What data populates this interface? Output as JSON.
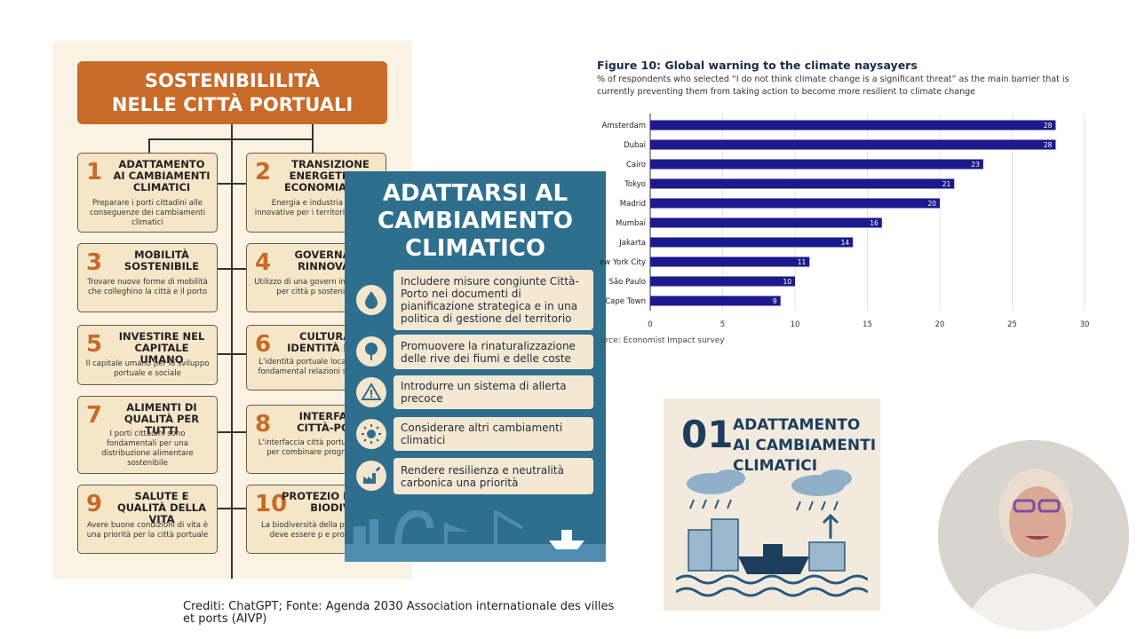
{
  "left": {
    "title_line1": "SOSTENIBILILITÀ",
    "title_line2": "NELLE CITTÀ PORTUALI",
    "cards": [
      {
        "num": "1",
        "title": "ADATTAMENTO AI CAMBIAMENTI CLIMATICI",
        "desc": "Preparare i porti cittadini alle conseguenze dei cambiamenti climatici"
      },
      {
        "num": "2",
        "title": "TRANSIZIONE ENERGETICA E ECONOMIA CIRC",
        "desc": "Energia e industria sost innovative per i territori cittadini"
      },
      {
        "num": "3",
        "title": "MOBILITÀ SOSTENIBILE",
        "desc": "Trovare nuove forme di mobilità che colleghino la città e il porto"
      },
      {
        "num": "4",
        "title": "GOVERNANC RINNOVATA",
        "desc": "Utilizzo di una govern innovativa per città p sostenibili"
      },
      {
        "num": "5",
        "title": "INVESTIRE NEL CAPITALE UMANO",
        "desc": "Il capitale umano per lo sviluppo portuale e sociale"
      },
      {
        "num": "6",
        "title": "CULTURA E IDENTITÀ PORT",
        "desc": "L'identità portuale loca risorsa fondamental relazioni sostenib"
      },
      {
        "num": "7",
        "title": "ALIMENTI DI QUALITÀ PER TUTTI",
        "desc": "I porti cittadini sono fondamentali per una distribuzione alimentare sostenibile"
      },
      {
        "num": "8",
        "title": "INTERFACC CITTÀ-PORT",
        "desc": "L'interfaccia città portu risorsa per combinare programmi"
      },
      {
        "num": "9",
        "title": "SALUTE E QUALITÀ DELLA VITA",
        "desc": "Avere buone condizioni di vita è una priorità per la città portuale"
      },
      {
        "num": "10",
        "title": "PROTEZIO DELLA BIODIV",
        "desc": "La biodiversità della portuale deve essere p e protetta"
      }
    ]
  },
  "mid": {
    "title_line1": "ADATTARSI AL",
    "title_line2": "CAMBIAMENTO",
    "title_line3": "CLIMATICO",
    "items": [
      {
        "icon": "water-drop-icon",
        "text": "Includere misure congiunte Città-Porto nei documenti di pianificazione strategica e in una politica di gestione del territorio"
      },
      {
        "icon": "tree-icon",
        "text": "Promuovere la rinaturalizzazione delle rive dei fiumi e delle coste"
      },
      {
        "icon": "warning-icon",
        "text": "Introdurre un sistema di allerta precoce"
      },
      {
        "icon": "sun-icon",
        "text": "Considerare altri cambiamenti climatici"
      },
      {
        "icon": "factory-leaf-icon",
        "text": "Rendere resilienza e neutralità carbonica una priorità"
      }
    ]
  },
  "chart": {
    "title": "Figure 10: Global warning to the climate naysayers",
    "subtitle": "% of respondents who selected “I do not think climate change is a significant threat” as the main barrier that is currently preventing them from taking action to become more resilient to climate change",
    "source": "urce: Economist Impact survey"
  },
  "chart_data": {
    "type": "bar",
    "orientation": "horizontal",
    "categories": [
      "Amsterdam",
      "Dubai",
      "Cairo",
      "Tokyo",
      "Madrid",
      "Mumbai",
      "Jakarta",
      "ew York City",
      "São Paulo",
      "Cape Town"
    ],
    "values": [
      28,
      28,
      23,
      21,
      20,
      16,
      14,
      11,
      10,
      9
    ],
    "xlim": [
      0,
      30
    ],
    "xticks": [
      "0",
      "5",
      "10",
      "15",
      "20",
      "25",
      "30"
    ],
    "bar_color": "#1a1a8c",
    "grid": true
  },
  "adapt": {
    "num": "01",
    "title_line1": "ADATTAMENTO",
    "title_line2": "AI CAMBIAMENTI",
    "title_line3": "CLIMATICI"
  },
  "credits": "Crediti: ChatGPT; Fonte: Agenda 2030 Association internationale des villes et ports (AIVP)"
}
